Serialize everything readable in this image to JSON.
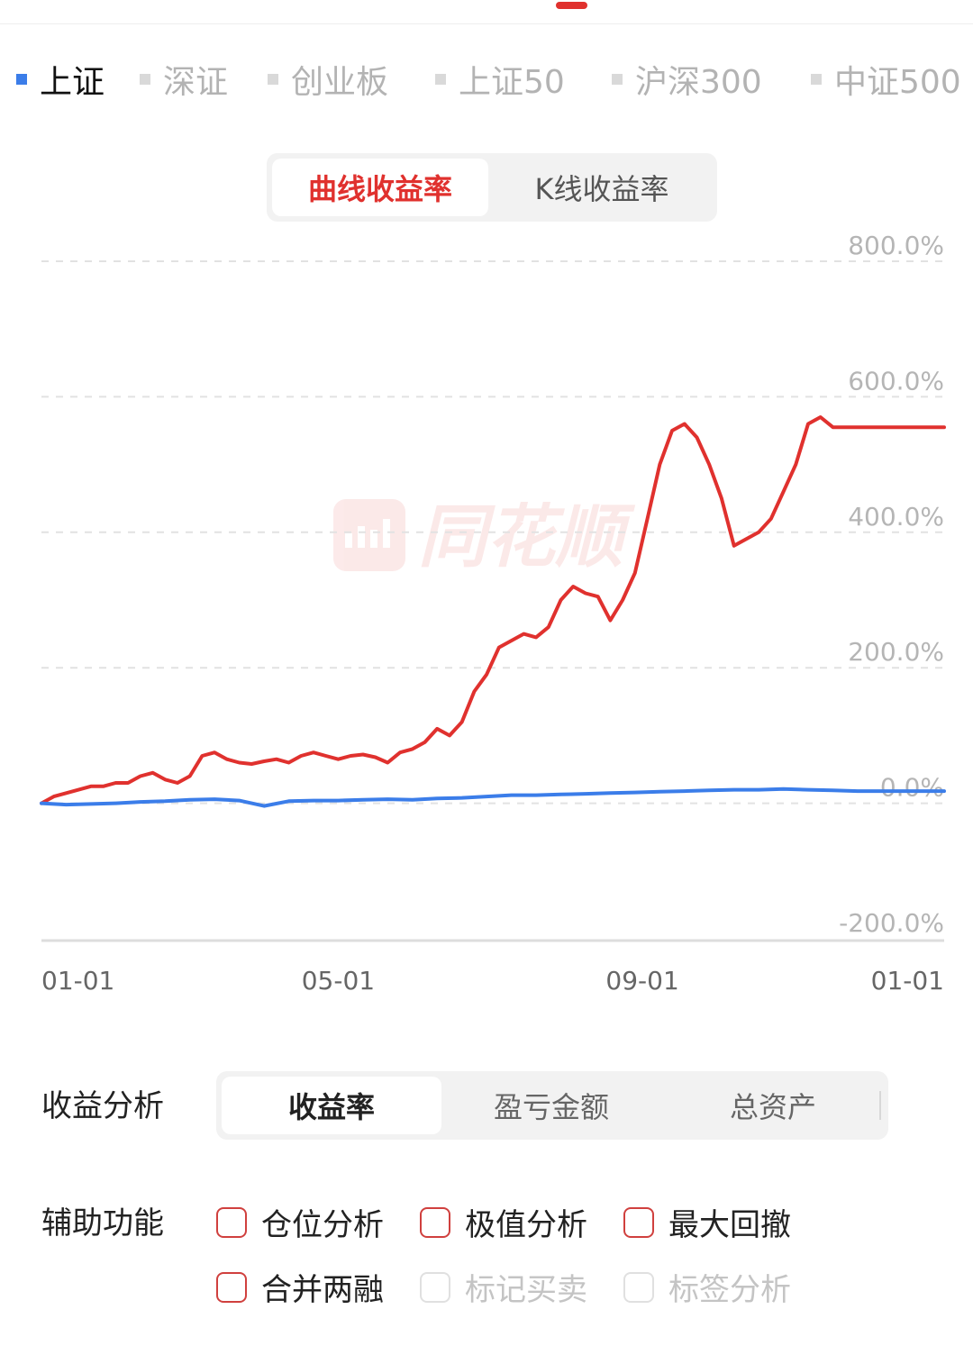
{
  "index_tabs": [
    {
      "label": "上证",
      "active": true
    },
    {
      "label": "深证",
      "active": false
    },
    {
      "label": "创业板",
      "active": false
    },
    {
      "label": "上证50",
      "active": false
    },
    {
      "label": "沪深300",
      "active": false
    },
    {
      "label": "中证500",
      "active": false
    }
  ],
  "mode_toggle": {
    "options": [
      "曲线收益率",
      "K线收益率"
    ],
    "active_index": 0
  },
  "watermark": {
    "text": "同花顺",
    "icon": "tonghuashun-logo-icon"
  },
  "colors": {
    "accent_red": "#e0312e",
    "benchmark_blue": "#3b7de9",
    "grid": "#e2e2e2",
    "axis_text": "#b5b5b5"
  },
  "chart_data": {
    "type": "line",
    "y_ticks": [
      "800.0%",
      "600.0%",
      "400.0%",
      "200.0%",
      "0.0%",
      "-200.0%"
    ],
    "y_tick_values": [
      800,
      600,
      400,
      200,
      0,
      -200
    ],
    "ylim": [
      -200,
      800
    ],
    "x_tick_labels": [
      "01-01",
      "05-01",
      "09-01",
      "01-01"
    ],
    "x_tick_positions": [
      0,
      120,
      243,
      365
    ],
    "xlim": [
      0,
      365
    ],
    "grid": true,
    "series": [
      {
        "color": "#e0312e",
        "x": [
          0,
          5,
          10,
          15,
          20,
          25,
          30,
          35,
          40,
          45,
          50,
          55,
          60,
          65,
          70,
          75,
          80,
          85,
          90,
          95,
          100,
          105,
          110,
          115,
          120,
          125,
          130,
          135,
          140,
          145,
          150,
          155,
          160,
          165,
          170,
          175,
          180,
          185,
          190,
          195,
          200,
          205,
          210,
          215,
          220,
          225,
          230,
          235,
          240,
          245,
          250,
          255,
          260,
          265,
          270,
          275,
          280,
          285,
          290,
          295,
          300,
          305,
          310,
          315,
          320,
          325,
          330,
          335,
          340,
          345,
          350,
          355,
          360,
          365
        ],
        "values": [
          0,
          10,
          15,
          20,
          25,
          25,
          30,
          30,
          40,
          45,
          35,
          30,
          40,
          70,
          75,
          65,
          60,
          58,
          62,
          65,
          60,
          70,
          75,
          70,
          65,
          70,
          72,
          68,
          60,
          75,
          80,
          90,
          110,
          100,
          120,
          165,
          190,
          230,
          240,
          250,
          245,
          260,
          300,
          320,
          310,
          305,
          270,
          300,
          340,
          420,
          500,
          550,
          560,
          540,
          500,
          450,
          380,
          390,
          400,
          420,
          460,
          500,
          560,
          570,
          555,
          555,
          555,
          555,
          555,
          555,
          555,
          555,
          555,
          555
        ]
      },
      {
        "color": "#3b7de9",
        "x": [
          0,
          10,
          20,
          30,
          40,
          50,
          60,
          70,
          80,
          90,
          100,
          110,
          120,
          130,
          140,
          150,
          160,
          170,
          180,
          190,
          200,
          210,
          220,
          230,
          240,
          250,
          260,
          270,
          280,
          290,
          300,
          310,
          320,
          330,
          340,
          350,
          360,
          365
        ],
        "values": [
          0,
          -2,
          -1,
          0,
          2,
          3,
          5,
          6,
          4,
          -4,
          3,
          4,
          4,
          5,
          6,
          5,
          7,
          8,
          10,
          12,
          12,
          13,
          14,
          15,
          16,
          17,
          18,
          19,
          20,
          20,
          21,
          20,
          19,
          18,
          18,
          18,
          18,
          18
        ]
      }
    ]
  },
  "analysis": {
    "label": "收益分析",
    "tabs": [
      "收益率",
      "盈亏金额",
      "总资产"
    ],
    "active_index": 0
  },
  "aux": {
    "label": "辅助功能",
    "items": [
      {
        "label": "仓位分析",
        "checked": false,
        "enabled": true
      },
      {
        "label": "极值分析",
        "checked": false,
        "enabled": true
      },
      {
        "label": "最大回撤",
        "checked": false,
        "enabled": true
      },
      {
        "label": "合并两融",
        "checked": false,
        "enabled": true
      },
      {
        "label": "标记买卖",
        "checked": false,
        "enabled": false
      },
      {
        "label": "标签分析",
        "checked": false,
        "enabled": false
      }
    ]
  }
}
